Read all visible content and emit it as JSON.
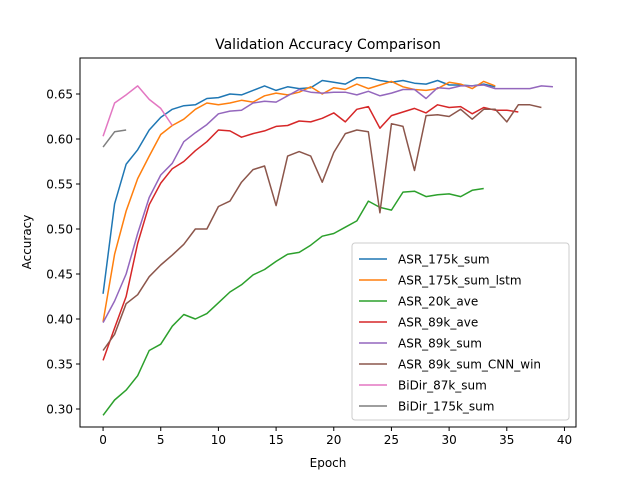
{
  "chart_data": {
    "type": "line",
    "title": "Validation Accuracy Comparison",
    "xlabel": "Epoch",
    "ylabel": "Accuracy",
    "xlim": [
      -2,
      41
    ],
    "ylim": [
      0.28,
      0.69
    ],
    "xticks": [
      0,
      5,
      10,
      15,
      20,
      25,
      30,
      35,
      40
    ],
    "xtick_labels": [
      "0",
      "5",
      "10",
      "15",
      "20",
      "25",
      "30",
      "35",
      "40"
    ],
    "yticks": [
      0.3,
      0.35,
      0.4,
      0.45,
      0.5,
      0.55,
      0.6,
      0.65
    ],
    "ytick_labels": [
      "0.30",
      "0.35",
      "0.40",
      "0.45",
      "0.50",
      "0.55",
      "0.60",
      "0.65"
    ],
    "grid": false,
    "legend_position": "lower-right",
    "series": [
      {
        "name": "ASR_175k_sum",
        "color": "#1f77b4",
        "values": [
          0.428,
          0.528,
          0.572,
          0.588,
          0.61,
          0.624,
          0.633,
          0.637,
          0.638,
          0.645,
          0.646,
          0.65,
          0.649,
          0.654,
          0.659,
          0.654,
          0.658,
          0.656,
          0.657,
          0.665,
          0.663,
          0.661,
          0.668,
          0.668,
          0.665,
          0.663,
          0.665,
          0.662,
          0.661,
          0.665,
          0.66,
          0.66,
          0.659,
          0.661,
          0.658
        ]
      },
      {
        "name": "ASR_175k_sum_lstm",
        "color": "#ff7f0e",
        "values": [
          0.397,
          0.472,
          0.52,
          0.556,
          0.581,
          0.605,
          0.615,
          0.622,
          0.633,
          0.64,
          0.638,
          0.64,
          0.643,
          0.641,
          0.648,
          0.651,
          0.649,
          0.652,
          0.658,
          0.65,
          0.657,
          0.655,
          0.661,
          0.656,
          0.66,
          0.664,
          0.658,
          0.655,
          0.654,
          0.656,
          0.663,
          0.661,
          0.656,
          0.664,
          0.659
        ]
      },
      {
        "name": "ASR_20k_ave",
        "color": "#2ca02c",
        "values": [
          0.293,
          0.31,
          0.321,
          0.337,
          0.365,
          0.372,
          0.392,
          0.405,
          0.4,
          0.406,
          0.418,
          0.43,
          0.438,
          0.449,
          0.455,
          0.464,
          0.472,
          0.474,
          0.482,
          0.492,
          0.495,
          0.502,
          0.509,
          0.531,
          0.524,
          0.521,
          0.541,
          0.542,
          0.536,
          0.538,
          0.539,
          0.536,
          0.543,
          0.545
        ]
      },
      {
        "name": "ASR_89k_ave",
        "color": "#d62728",
        "values": [
          0.354,
          0.39,
          0.425,
          0.484,
          0.527,
          0.551,
          0.567,
          0.575,
          0.587,
          0.597,
          0.61,
          0.609,
          0.602,
          0.606,
          0.609,
          0.614,
          0.615,
          0.62,
          0.619,
          0.623,
          0.629,
          0.619,
          0.633,
          0.636,
          0.612,
          0.626,
          0.63,
          0.634,
          0.629,
          0.638,
          0.635,
          0.636,
          0.628,
          0.635,
          0.632,
          0.632,
          0.63
        ]
      },
      {
        "name": "ASR_89k_sum",
        "color": "#9467bd",
        "values": [
          0.396,
          0.42,
          0.45,
          0.495,
          0.535,
          0.56,
          0.573,
          0.597,
          0.607,
          0.616,
          0.628,
          0.631,
          0.632,
          0.64,
          0.642,
          0.641,
          0.648,
          0.655,
          0.652,
          0.651,
          0.652,
          0.652,
          0.649,
          0.653,
          0.648,
          0.651,
          0.655,
          0.655,
          0.645,
          0.657,
          0.656,
          0.659,
          0.659,
          0.66,
          0.656,
          0.656,
          0.656,
          0.656,
          0.659,
          0.658
        ]
      },
      {
        "name": "ASR_89k_sum_CNN_win",
        "color": "#8c564b",
        "values": [
          0.365,
          0.383,
          0.417,
          0.427,
          0.447,
          0.46,
          0.471,
          0.483,
          0.5,
          0.5,
          0.525,
          0.531,
          0.552,
          0.566,
          0.57,
          0.526,
          0.581,
          0.586,
          0.581,
          0.552,
          0.585,
          0.606,
          0.61,
          0.608,
          0.518,
          0.617,
          0.614,
          0.565,
          0.626,
          0.627,
          0.625,
          0.633,
          0.622,
          0.633,
          0.633,
          0.619,
          0.638,
          0.638,
          0.635
        ]
      },
      {
        "name": "BiDir_87k_sum",
        "color": "#e377c2",
        "values": [
          0.603,
          0.64,
          0.649,
          0.659,
          0.644,
          0.634,
          0.615
        ]
      },
      {
        "name": "BiDir_175k_sum",
        "color": "#7f7f7f",
        "values": [
          0.591,
          0.608,
          0.61
        ]
      }
    ]
  }
}
